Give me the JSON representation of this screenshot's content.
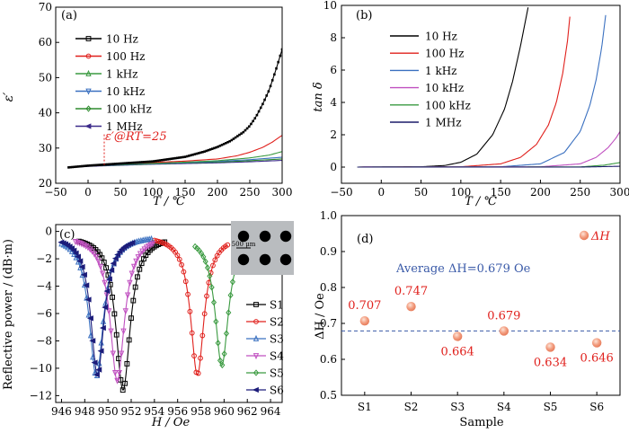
{
  "chart_data": [
    {
      "type": "line",
      "panel_label": "(a)",
      "xlabel": "T / ℃",
      "ylabel": "ε′",
      "xlim": [
        -50,
        300
      ],
      "ylim": [
        20,
        70
      ],
      "xticks": [
        "−50",
        "0",
        "50",
        "100",
        "150",
        "200",
        "250",
        "300"
      ],
      "yticks": [
        "20",
        "30",
        "40",
        "50",
        "60",
        "70"
      ],
      "legend_position": "top-left",
      "annotation": "ε′@RT=25",
      "annotation_x": 25,
      "series": [
        {
          "name": "10 Hz",
          "color": "#000000",
          "marker": "square",
          "x": [
            -30,
            0,
            25,
            50,
            100,
            150,
            180,
            200,
            220,
            240,
            250,
            260,
            270,
            280,
            290,
            300
          ],
          "y": [
            24.5,
            25.0,
            25.3,
            25.6,
            26.2,
            27.5,
            29.0,
            30.3,
            32.0,
            34.5,
            36.3,
            39.0,
            42.5,
            46.5,
            52.0,
            58.0
          ]
        },
        {
          "name": "100 Hz",
          "color": "#e0201c",
          "marker": "circle",
          "x": [
            -30,
            0,
            50,
            100,
            150,
            200,
            230,
            250,
            270,
            285,
            295,
            300
          ],
          "y": [
            24.6,
            25.0,
            25.5,
            25.9,
            26.3,
            26.9,
            27.8,
            28.8,
            30.2,
            31.7,
            33.0,
            33.6
          ]
        },
        {
          "name": "1 kHz",
          "color": "#3a9a40",
          "marker": "triangle",
          "x": [
            -30,
            0,
            50,
            100,
            150,
            200,
            250,
            280,
            300
          ],
          "y": [
            24.6,
            25.0,
            25.4,
            25.7,
            26.0,
            26.4,
            27.2,
            28.0,
            29.0
          ]
        },
        {
          "name": "10 kHz",
          "color": "#3a70c0",
          "marker": "triangle-down",
          "x": [
            -30,
            0,
            50,
            100,
            150,
            200,
            250,
            300
          ],
          "y": [
            24.5,
            24.9,
            25.3,
            25.6,
            25.9,
            26.2,
            26.7,
            27.4
          ]
        },
        {
          "name": "100 kHz",
          "color": "#2e8b2e",
          "marker": "diamond",
          "x": [
            -30,
            0,
            50,
            100,
            150,
            200,
            250,
            300
          ],
          "y": [
            24.5,
            24.9,
            25.2,
            25.5,
            25.8,
            26.0,
            26.4,
            26.9
          ]
        },
        {
          "name": "1 MHz",
          "color": "#3c2a8a",
          "marker": "triangle-left",
          "x": [
            -30,
            0,
            50,
            100,
            150,
            200,
            250,
            300
          ],
          "y": [
            24.5,
            24.8,
            25.1,
            25.4,
            25.6,
            25.8,
            26.1,
            26.5
          ]
        }
      ]
    },
    {
      "type": "line",
      "panel_label": "(b)",
      "xlabel": "T / ℃",
      "ylabel": "tan δ",
      "xlim": [
        -50,
        300
      ],
      "ylim": [
        -1,
        10
      ],
      "xticks": [
        "−50",
        "0",
        "50",
        "100",
        "150",
        "200",
        "250",
        "300"
      ],
      "yticks": [
        "0",
        "2",
        "4",
        "6",
        "8",
        "10"
      ],
      "legend_position": "top-left",
      "series": [
        {
          "name": "10 Hz",
          "color": "#000000",
          "x": [
            -30,
            50,
            80,
            100,
            120,
            140,
            155,
            165,
            175,
            185
          ],
          "y": [
            0,
            0.02,
            0.1,
            0.3,
            0.8,
            2.0,
            3.6,
            5.3,
            7.5,
            10
          ]
        },
        {
          "name": "100 Hz",
          "color": "#e0201c",
          "x": [
            -30,
            100,
            150,
            175,
            195,
            210,
            220,
            228,
            234,
            238
          ],
          "y": [
            0,
            0.02,
            0.2,
            0.6,
            1.4,
            2.6,
            4.0,
            5.8,
            7.8,
            9.8
          ]
        },
        {
          "name": "1 kHz",
          "color": "#3a70c0",
          "x": [
            -30,
            150,
            200,
            230,
            250,
            262,
            270,
            277,
            283
          ],
          "y": [
            0,
            0.02,
            0.2,
            0.9,
            2.2,
            3.8,
            5.4,
            7.4,
            9.8
          ]
        },
        {
          "name": "10 kHz",
          "color": "#c050c0",
          "x": [
            -30,
            200,
            250,
            270,
            285,
            295,
            300
          ],
          "y": [
            0,
            0.02,
            0.2,
            0.6,
            1.2,
            1.8,
            2.2
          ]
        },
        {
          "name": "100 kHz",
          "color": "#3a9a40",
          "x": [
            -30,
            250,
            280,
            300
          ],
          "y": [
            0,
            0.01,
            0.12,
            0.28
          ]
        },
        {
          "name": "1 MHz",
          "color": "#1c1c6a",
          "x": [
            -30,
            250,
            300
          ],
          "y": [
            0,
            0.0,
            0.05
          ]
        }
      ]
    },
    {
      "type": "line",
      "panel_label": "(c)",
      "xlabel": "H / Oe",
      "ylabel": "Reflective power / (dB·m)",
      "xlim": [
        945.5,
        965
      ],
      "ylim": [
        -12.5,
        0.5
      ],
      "xticks": [
        "946",
        "948",
        "950",
        "952",
        "954",
        "956",
        "958",
        "960",
        "962",
        "964"
      ],
      "yticks": [
        "0",
        "−2",
        "−4",
        "−6",
        "−8",
        "−10",
        "−12"
      ],
      "legend_position": "bottom-right",
      "inset_scale_label": "500 μm",
      "series": [
        {
          "name": "S1",
          "color": "#000000",
          "marker": "square",
          "center": 951.3,
          "depth": -11.6,
          "hw": 0.75,
          "xmin": 947.5,
          "xmax": 955.0
        },
        {
          "name": "S2",
          "color": "#e0201c",
          "marker": "circle",
          "center": 957.7,
          "depth": -10.5,
          "hw": 0.7,
          "xmin": 954.0,
          "xmax": 960.3
        },
        {
          "name": "S3",
          "color": "#3a70c0",
          "marker": "triangle",
          "center": 949.0,
          "depth": -10.6,
          "hw": 0.75,
          "xmin": 946.0,
          "xmax": 953.8
        },
        {
          "name": "S4",
          "color": "#c050c0",
          "marker": "triangle-down",
          "center": 950.8,
          "depth": -10.9,
          "hw": 0.75,
          "xmin": 947.2,
          "xmax": 954.0
        },
        {
          "name": "S5",
          "color": "#3a9a40",
          "marker": "diamond",
          "center": 959.8,
          "depth": -9.8,
          "hw": 0.7,
          "xmin": 957.5,
          "xmax": 962.2
        },
        {
          "name": "S6",
          "color": "#1c1c7a",
          "marker": "triangle-left",
          "center": 949.1,
          "depth": -10.5,
          "hw": 0.7,
          "xmin": 946.0,
          "xmax": 952.2
        }
      ]
    },
    {
      "type": "scatter",
      "panel_label": "(d)",
      "xlabel": "Sample",
      "ylabel": "ΔH / Oe",
      "ylim": [
        0.5,
        1.0
      ],
      "yticks": [
        "0.5",
        "0.6",
        "0.7",
        "0.8",
        "0.9",
        "1.0"
      ],
      "categories": [
        "S1",
        "S2",
        "S3",
        "S4",
        "S5",
        "S6"
      ],
      "values": [
        0.707,
        0.747,
        0.664,
        0.679,
        0.634,
        0.646
      ],
      "value_labels": [
        "0.707",
        "0.747",
        "0.664",
        "0.679",
        "0.634",
        "0.646"
      ],
      "average": 0.679,
      "average_label": "Average  ΔH=0.679 Oe",
      "legend": "ΔH",
      "point_color": "#f08a6a",
      "label_color": "#e0201c",
      "average_color": "#3a5aa8"
    }
  ]
}
